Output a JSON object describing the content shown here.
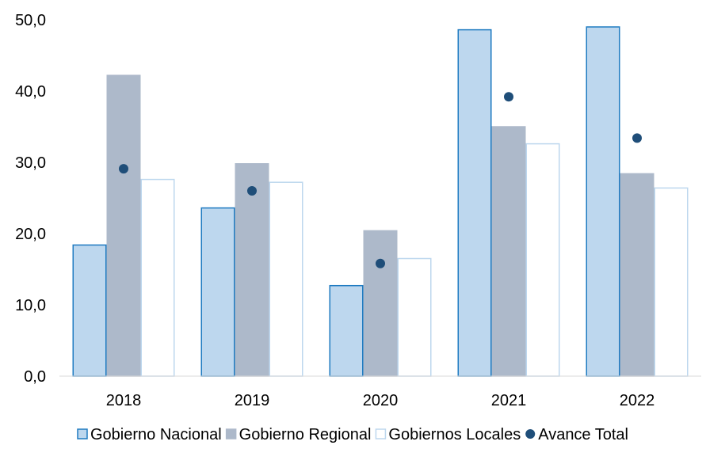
{
  "chart_data": {
    "type": "bar",
    "categories": [
      "2018",
      "2019",
      "2020",
      "2021",
      "2022"
    ],
    "series": [
      {
        "name": "Gobierno Nacional",
        "kind": "bar",
        "values": [
          18.4,
          23.6,
          12.7,
          48.6,
          49.0
        ],
        "fill": "#BDD7EE",
        "stroke": "#1F7BC1"
      },
      {
        "name": "Gobierno Regional",
        "kind": "bar",
        "values": [
          42.2,
          29.8,
          20.4,
          35.0,
          28.4
        ],
        "fill": "#ADB9CA",
        "stroke": "#ADB9CA"
      },
      {
        "name": "Gobiernos Locales",
        "kind": "bar",
        "values": [
          27.6,
          27.2,
          16.5,
          32.6,
          26.4
        ],
        "fill": "#FFFFFF",
        "stroke": "#BDD7EE"
      },
      {
        "name": "Avance Total",
        "kind": "marker",
        "values": [
          29.1,
          26.0,
          15.8,
          39.2,
          33.4
        ],
        "fill": "#1F4E79"
      }
    ],
    "ylim": [
      0,
      50
    ],
    "yticks": [
      "0,0",
      "10,0",
      "20,0",
      "30,0",
      "40,0",
      "50,0"
    ],
    "grid": false,
    "legend_position": "bottom",
    "title": "",
    "xlabel": "",
    "ylabel": ""
  }
}
